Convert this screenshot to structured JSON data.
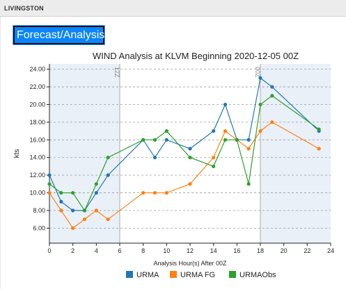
{
  "header": {
    "location_title": "LIVINGSTON"
  },
  "tab": {
    "label": "Forecast/Analysis"
  },
  "chart_data": {
    "type": "line",
    "title": "WIND Analysis at KLVM Beginning 2020-12-05 00Z",
    "xlabel": "Analysis Hour(s) After 00Z",
    "ylabel": "kts",
    "xlim": [
      0,
      24
    ],
    "ylim": [
      4.3,
      24.6
    ],
    "x_ticks": [
      0,
      2,
      4,
      6,
      8,
      10,
      12,
      14,
      16,
      18,
      20,
      22,
      24
    ],
    "y_ticks": [
      6,
      8,
      10,
      12,
      14,
      16,
      18,
      20,
      22,
      24
    ],
    "grid": "horizontal dashed",
    "shaded_periods": [
      [
        0,
        6
      ],
      [
        18,
        24
      ]
    ],
    "markers": [
      {
        "x": 6,
        "label": "12Z"
      },
      {
        "x": 18,
        "label": "00Z"
      }
    ],
    "legend_position": "bottom",
    "series": [
      {
        "name": "URMA",
        "color": "#1f77b4",
        "x": [
          0,
          1,
          2,
          3,
          4,
          5,
          8,
          9,
          10,
          12,
          14,
          15,
          16,
          17,
          18,
          19,
          23
        ],
        "y": [
          12,
          9,
          8,
          8,
          10,
          12,
          16,
          14,
          16,
          15,
          17,
          20,
          16,
          16,
          23,
          22,
          17
        ]
      },
      {
        "name": "URMA FG",
        "color": "#ff7f0e",
        "x": [
          0,
          1,
          2,
          3,
          4,
          5,
          8,
          9,
          10,
          12,
          14,
          15,
          16,
          17,
          18,
          19,
          23
        ],
        "y": [
          10,
          8,
          6,
          7,
          8,
          7,
          10,
          10,
          10,
          11,
          14,
          17,
          16,
          15,
          17,
          18,
          15
        ]
      },
      {
        "name": "URMAObs",
        "color": "#2ca02c",
        "x": [
          0,
          1,
          2,
          3,
          4,
          5,
          8,
          9,
          10,
          12,
          14,
          15,
          16,
          17,
          18,
          19,
          23
        ],
        "y": [
          11,
          10,
          10,
          8,
          11,
          14,
          16,
          16,
          17,
          14,
          13,
          16,
          16,
          11,
          20,
          21,
          17.2
        ]
      }
    ]
  }
}
